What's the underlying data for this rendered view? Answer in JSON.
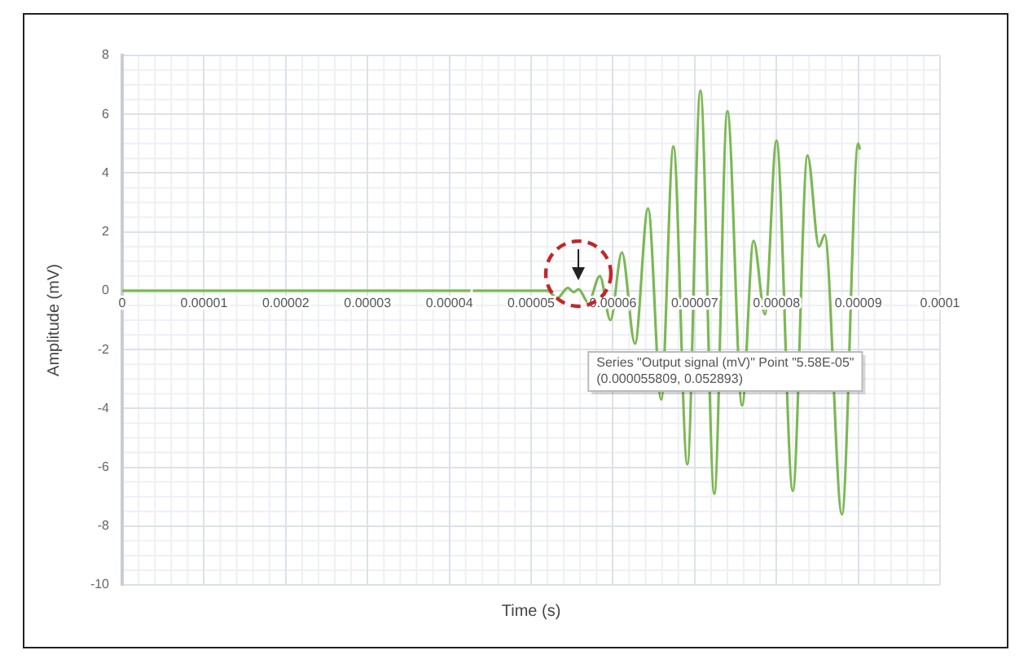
{
  "chart_data": {
    "type": "line",
    "xlabel": "Time (s)",
    "ylabel": "Amplitude (mV)",
    "xlim": [
      0,
      0.0001
    ],
    "xticks": [
      0,
      {
        "value": 1e-05,
        "label": "0.00001"
      },
      {
        "value": 2e-05,
        "label": "0.00002"
      },
      {
        "value": 3e-05,
        "label": "0.00003"
      },
      {
        "value": 4e-05,
        "label": "0.00004"
      },
      {
        "value": 5e-05,
        "label": "0.00005"
      },
      {
        "value": 6e-05,
        "label": "0.00006"
      },
      {
        "value": 7e-05,
        "label": "0.00007"
      },
      {
        "value": 8e-05,
        "label": "0.00008"
      },
      {
        "value": 9e-05,
        "label": "0.00009"
      },
      {
        "value": 0.0001,
        "label": "0.0001"
      }
    ],
    "ylim": [
      -10,
      8
    ],
    "yticks": [
      -10,
      -8,
      -6,
      -4,
      -2,
      0,
      2,
      4,
      6,
      8
    ],
    "grid": true,
    "legend": false,
    "marker": "none",
    "line_style": "solid",
    "series": [
      {
        "color": "#7cb854",
        "x": [
          0,
          5.2e-05,
          5.32e-05,
          5.45e-05,
          5.52e-05,
          5.58e-05,
          5.7e-05,
          5.84e-05,
          5.97e-05,
          6.11e-05,
          6.27e-05,
          6.43e-05,
          6.59e-05,
          6.74e-05,
          6.91e-05,
          7.07e-05,
          7.24e-05,
          7.4e-05,
          7.58e-05,
          7.72e-05,
          7.86e-05,
          8e-05,
          8.2e-05,
          8.38e-05,
          8.52e-05,
          8.59e-05,
          8.8e-05,
          9e-05,
          9.02e-05
        ],
        "values": [
          0,
          0,
          -0.25,
          0.1,
          -0.05,
          0.05,
          -0.4,
          0.5,
          -1.0,
          1.3,
          -1.8,
          2.8,
          -3.7,
          4.9,
          -5.9,
          6.8,
          -6.9,
          6.1,
          -3.9,
          1.7,
          -0.8,
          5.1,
          -6.8,
          4.6,
          1.5,
          1.9,
          -7.6,
          5.0,
          4.8
        ]
      }
    ],
    "annotations": [
      "Series \"Output signal (mV)\" Point \"5.58E-05\"\n(0.000055809, 0.052893)"
    ]
  }
}
